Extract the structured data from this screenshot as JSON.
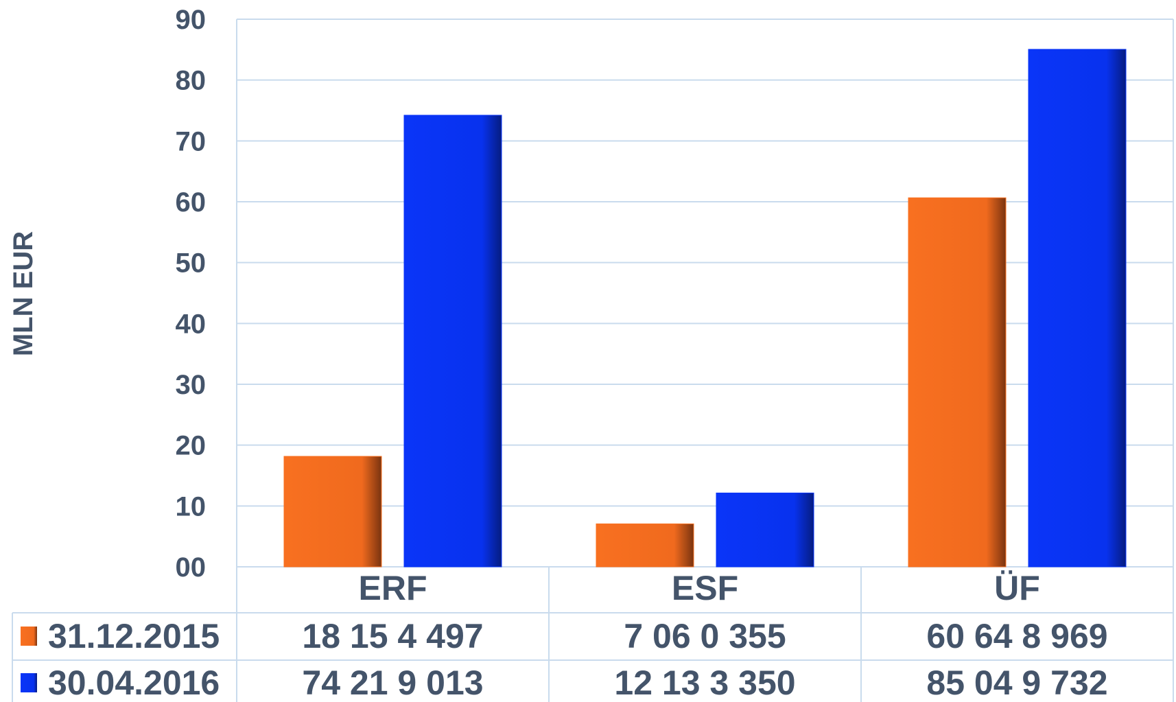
{
  "chart_data": {
    "type": "bar",
    "ylabel": "MLN EUR",
    "ylim": [
      0,
      90
    ],
    "y_ticks": [
      "00",
      "10",
      "20",
      "30",
      "40",
      "50",
      "60",
      "70",
      "80",
      "90"
    ],
    "grid": true,
    "categories": [
      "ERF",
      "ESF",
      "ÜF"
    ],
    "series": [
      {
        "name": "31.12.2015",
        "color": "#f87020",
        "values": [
          18.154497,
          7.060355,
          60.648969
        ],
        "table_labels": [
          "18 15 4 497",
          "7 06 0 355",
          "60 64 8 969"
        ]
      },
      {
        "name": "30.04.2016",
        "color": "#0a35f8",
        "values": [
          74.219013,
          12.13335,
          85.049732
        ],
        "table_labels": [
          "74 21 9 013",
          "12 13 3 350",
          "85 04 9 732"
        ]
      }
    ],
    "legend_placement": "data-table-left"
  }
}
